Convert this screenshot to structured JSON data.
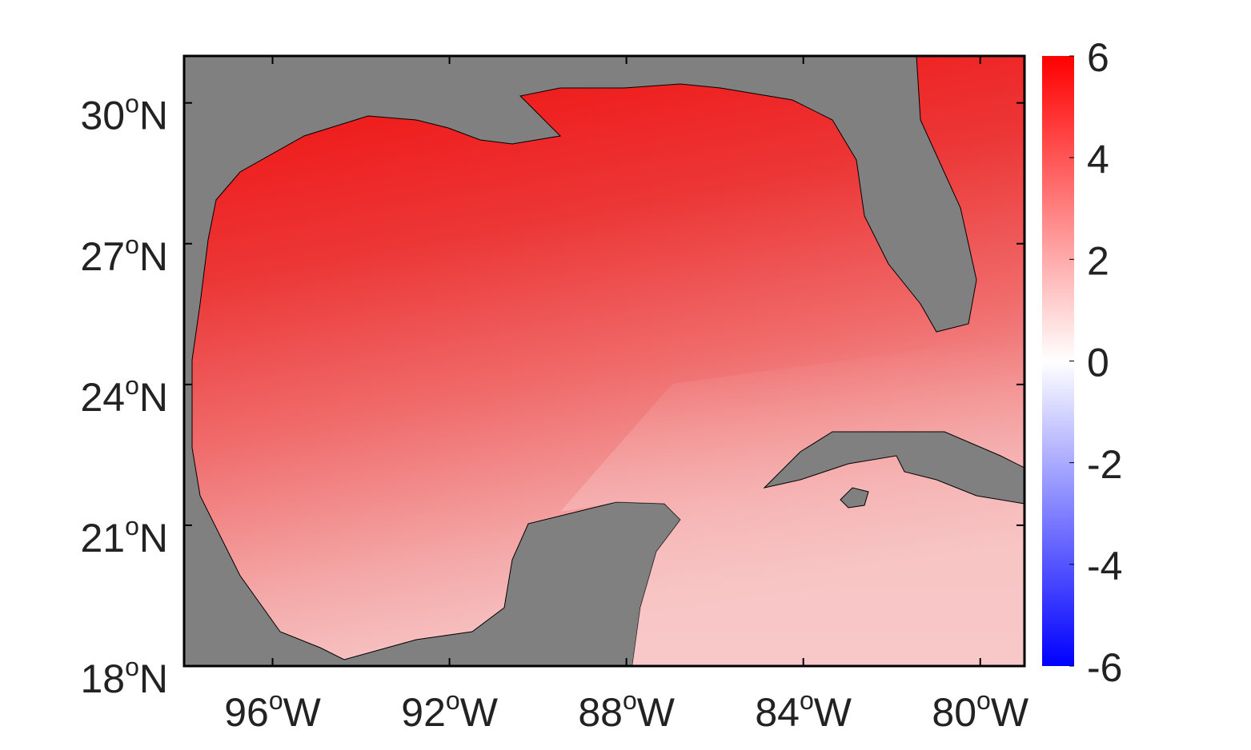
{
  "chart_data": {
    "type": "map",
    "degree_symbol": "o",
    "x_hemisphere": "W",
    "y_hemisphere": "N",
    "xlim": [
      -98,
      -79
    ],
    "ylim": [
      18,
      31
    ],
    "xticks": [
      {
        "value": -96,
        "label": "96"
      },
      {
        "value": -92,
        "label": "92"
      },
      {
        "value": -88,
        "label": "88"
      },
      {
        "value": -84,
        "label": "84"
      },
      {
        "value": -80,
        "label": "80"
      }
    ],
    "yticks": [
      18,
      21,
      24,
      27,
      30
    ],
    "land_color": "#808080",
    "colorbar": {
      "clim": [
        -6,
        6
      ],
      "ticks": [
        -6,
        -4,
        -2,
        0,
        2,
        4,
        6
      ],
      "colors": [
        "#0000ff",
        "#ffffff",
        "#ff0000"
      ]
    }
  }
}
